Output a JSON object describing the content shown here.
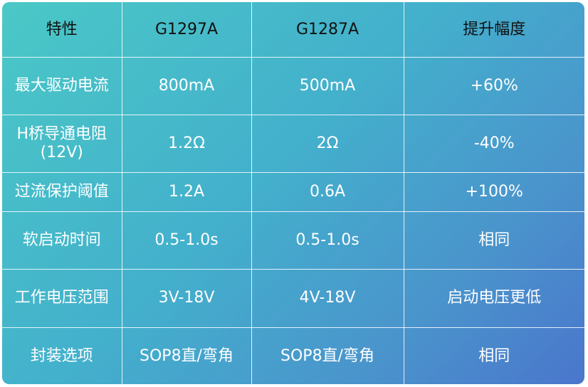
{
  "table": {
    "headers": [
      "特性",
      "G1297A",
      "G1287A",
      "提升幅度"
    ],
    "rows": [
      [
        "最大驱动电流",
        "800mA",
        "500mA",
        "+60%"
      ],
      [
        "H桥导通电阻\n(12V)",
        "1.2Ω",
        "2Ω",
        "-40%"
      ],
      [
        "过流保护阈值",
        "1.2A",
        "0.6A",
        "+100%"
      ],
      [
        "软启动时间",
        "0.5-1.0s",
        "0.5-1.0s",
        "相同"
      ],
      [
        "工作电压范围",
        "3V-18V",
        "4V-18V",
        "启动电压更低"
      ],
      [
        "封装选项",
        "SOP8直/弯角",
        "SOP8直/弯角",
        "相同"
      ]
    ]
  },
  "colors": {
    "gradient_start": "#4ac8c6",
    "gradient_end": "#4a76cc",
    "header_text": "#111111",
    "cell_text": "#ffffff",
    "grid": "#ffffff"
  }
}
